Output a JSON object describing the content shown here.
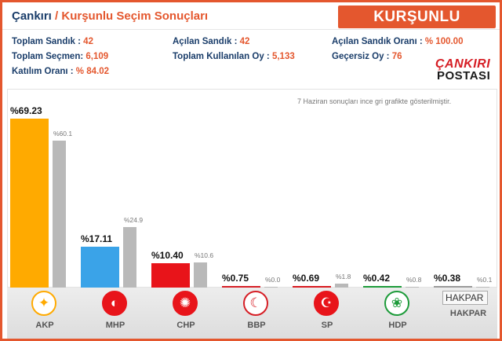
{
  "header": {
    "city": "Çankırı",
    "separator": " / ",
    "subtitle": "Kurşunlu Seçim Sonuçları",
    "badge": "KURŞUNLU"
  },
  "stats": [
    {
      "label": "Toplam Sandık : ",
      "value": "42"
    },
    {
      "label": "Açılan Sandık : ",
      "value": "42"
    },
    {
      "label": "Açılan Sandık Oranı : ",
      "value": "% 100.00"
    },
    {
      "label": "Toplam Seçmen: ",
      "value": "6,109"
    },
    {
      "label": "Toplam Kullanılan Oy : ",
      "value": "5,133"
    },
    {
      "label": "Geçersiz Oy : ",
      "value": "76"
    },
    {
      "label": "Katılım Oranı : ",
      "value": "% 84.02"
    }
  ],
  "logo": {
    "line1": "ÇANKIRI",
    "line2": "POSTASI"
  },
  "note": "7 Haziran sonuçları ince gri grafikte gösterilmiştir.",
  "chart_data": {
    "type": "bar",
    "categories": [
      "AKP",
      "MHP",
      "CHP",
      "BBP",
      "SP",
      "HDP",
      "HAKPAR"
    ],
    "series": [
      {
        "values": [
          69.23,
          17.11,
          10.4,
          0.75,
          0.69,
          0.42,
          0.38
        ],
        "labels": [
          "%69.23",
          "%17.11",
          "%10.40",
          "%0.75",
          "%0.69",
          "%0.42",
          "%0.38"
        ]
      },
      {
        "values": [
          60.1,
          24.9,
          10.6,
          0.0,
          1.8,
          0.8,
          0.1
        ],
        "labels": [
          "%60.1",
          "%24.9",
          "%10.6",
          "%0.0",
          "%1.8",
          "%0.8",
          "%0.1"
        ]
      }
    ],
    "colors": [
      "#ffaa00",
      "#3aa3e8",
      "#e8141a",
      "#d61f26",
      "#d8191f",
      "#1d9b3a",
      "#9a9a9a"
    ],
    "previous_color": "#b9b9b9"
  },
  "parties": [
    {
      "name": "AKP"
    },
    {
      "name": "MHP"
    },
    {
      "name": "CHP"
    },
    {
      "name": "BBP"
    },
    {
      "name": "SP"
    },
    {
      "name": "HDP"
    },
    {
      "name": "HAKPAR",
      "logo_alt": "HAKPAR"
    }
  ]
}
